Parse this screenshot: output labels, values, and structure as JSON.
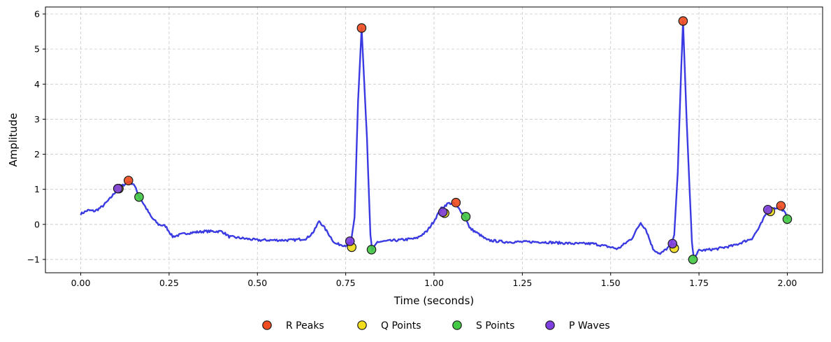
{
  "chart_data": {
    "type": "line",
    "title": "",
    "xlabel": "Time (seconds)",
    "ylabel": "Amplitude",
    "xlim": [
      -0.1,
      2.1
    ],
    "ylim": [
      -1.38,
      6.2
    ],
    "x_ticks": [
      0.0,
      0.25,
      0.5,
      0.75,
      1.0,
      1.25,
      1.5,
      1.75,
      2.0
    ],
    "x_tick_labels": [
      "0.00",
      "0.25",
      "0.50",
      "0.75",
      "1.00",
      "1.25",
      "1.50",
      "1.75",
      "2.00"
    ],
    "y_ticks": [
      -1,
      0,
      1,
      2,
      3,
      4,
      5,
      6
    ],
    "y_tick_labels": [
      "−1",
      "0",
      "1",
      "2",
      "3",
      "4",
      "5",
      "6"
    ],
    "grid": true,
    "legend_position": "bottom-center",
    "signal": {
      "color": "#2f2fe0",
      "points": [
        [
          0.0,
          0.3
        ],
        [
          0.02,
          0.4
        ],
        [
          0.04,
          0.38
        ],
        [
          0.06,
          0.5
        ],
        [
          0.08,
          0.7
        ],
        [
          0.1,
          0.95
        ],
        [
          0.11,
          1.05
        ],
        [
          0.125,
          1.15
        ],
        [
          0.135,
          1.22
        ],
        [
          0.15,
          1.15
        ],
        [
          0.165,
          0.8
        ],
        [
          0.18,
          0.55
        ],
        [
          0.2,
          0.2
        ],
        [
          0.22,
          0.0
        ],
        [
          0.24,
          -0.05
        ],
        [
          0.26,
          -0.35
        ],
        [
          0.3,
          -0.25
        ],
        [
          0.35,
          -0.2
        ],
        [
          0.4,
          -0.2
        ],
        [
          0.42,
          -0.35
        ],
        [
          0.5,
          -0.45
        ],
        [
          0.6,
          -0.45
        ],
        [
          0.64,
          -0.4
        ],
        [
          0.66,
          -0.2
        ],
        [
          0.675,
          0.1
        ],
        [
          0.69,
          -0.1
        ],
        [
          0.72,
          -0.55
        ],
        [
          0.75,
          -0.6
        ],
        [
          0.765,
          -0.5
        ],
        [
          0.775,
          0.2
        ],
        [
          0.785,
          3.5
        ],
        [
          0.795,
          5.6
        ],
        [
          0.81,
          2.5
        ],
        [
          0.82,
          -0.3
        ],
        [
          0.825,
          -0.75
        ],
        [
          0.84,
          -0.5
        ],
        [
          0.9,
          -0.45
        ],
        [
          0.95,
          -0.4
        ],
        [
          0.98,
          -0.2
        ],
        [
          1.0,
          0.1
        ],
        [
          1.02,
          0.45
        ],
        [
          1.04,
          0.6
        ],
        [
          1.055,
          0.6
        ],
        [
          1.07,
          0.45
        ],
        [
          1.09,
          0.2
        ],
        [
          1.1,
          -0.1
        ],
        [
          1.13,
          -0.3
        ],
        [
          1.15,
          -0.45
        ],
        [
          1.2,
          -0.5
        ],
        [
          1.3,
          -0.5
        ],
        [
          1.4,
          -0.55
        ],
        [
          1.45,
          -0.55
        ],
        [
          1.5,
          -0.65
        ],
        [
          1.52,
          -0.7
        ],
        [
          1.54,
          -0.55
        ],
        [
          1.56,
          -0.4
        ],
        [
          1.585,
          0.05
        ],
        [
          1.6,
          -0.15
        ],
        [
          1.62,
          -0.7
        ],
        [
          1.64,
          -0.85
        ],
        [
          1.67,
          -0.6
        ],
        [
          1.68,
          -0.3
        ],
        [
          1.69,
          1.5
        ],
        [
          1.7,
          4.5
        ],
        [
          1.705,
          5.8
        ],
        [
          1.715,
          3.0
        ],
        [
          1.73,
          -0.5
        ],
        [
          1.735,
          -0.95
        ],
        [
          1.75,
          -0.75
        ],
        [
          1.8,
          -0.7
        ],
        [
          1.85,
          -0.6
        ],
        [
          1.9,
          -0.4
        ],
        [
          1.92,
          -0.1
        ],
        [
          1.94,
          0.3
        ],
        [
          1.96,
          0.45
        ],
        [
          1.98,
          0.5
        ],
        [
          1.995,
          0.3
        ],
        [
          2.0,
          0.15
        ]
      ]
    },
    "series": [
      {
        "name": "R Peaks",
        "color": "#f04e22",
        "points": [
          [
            0.135,
            1.25
          ],
          [
            0.795,
            5.6
          ],
          [
            1.062,
            0.62
          ],
          [
            1.705,
            5.8
          ],
          [
            1.982,
            0.53
          ]
        ]
      },
      {
        "name": "Q Points",
        "color": "#f2dd1c",
        "points": [
          [
            0.108,
            1.02
          ],
          [
            0.767,
            -0.65
          ],
          [
            1.03,
            0.32
          ],
          [
            1.68,
            -0.68
          ],
          [
            1.952,
            0.37
          ]
        ]
      },
      {
        "name": "S Points",
        "color": "#44c944",
        "points": [
          [
            0.165,
            0.78
          ],
          [
            0.823,
            -0.72
          ],
          [
            1.09,
            0.22
          ],
          [
            1.733,
            -1.0
          ],
          [
            2.0,
            0.15
          ]
        ]
      },
      {
        "name": "P Waves",
        "color": "#7f3fe0",
        "points": [
          [
            0.105,
            1.02
          ],
          [
            0.762,
            -0.48
          ],
          [
            1.025,
            0.35
          ],
          [
            1.675,
            -0.55
          ],
          [
            1.945,
            0.42
          ]
        ]
      }
    ]
  }
}
